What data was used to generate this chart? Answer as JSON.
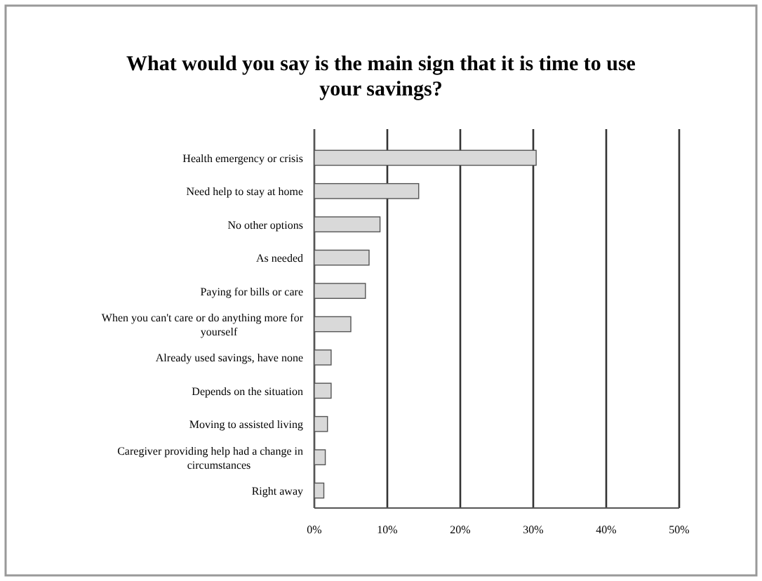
{
  "chart_data": {
    "type": "bar",
    "orientation": "horizontal",
    "title": "What would you say is the main sign that it is time to use your savings?",
    "categories": [
      "Health emergency or crisis",
      "Need help to stay at home",
      "No other options",
      "As needed",
      "Paying for bills or care",
      "When you can't care or do anything more for yourself",
      "Already used savings, have none",
      "Depends on the situation",
      "Moving to assisted living",
      "Caregiver providing help had a change in circumstances",
      "Right away"
    ],
    "values": [
      30.4,
      14.3,
      9,
      7.5,
      7,
      5,
      2.3,
      2.3,
      1.8,
      1.5,
      1.3
    ],
    "color": "#d9d9d9",
    "xlim": [
      0,
      50
    ],
    "xticks": [
      {
        "value": 0,
        "label": "0%"
      },
      {
        "value": 10,
        "label": "10%"
      },
      {
        "value": 20,
        "label": "20%"
      },
      {
        "value": 30,
        "label": "30%"
      },
      {
        "value": 40,
        "label": "40%"
      },
      {
        "value": 50,
        "label": "50%"
      }
    ],
    "grid": "x"
  }
}
